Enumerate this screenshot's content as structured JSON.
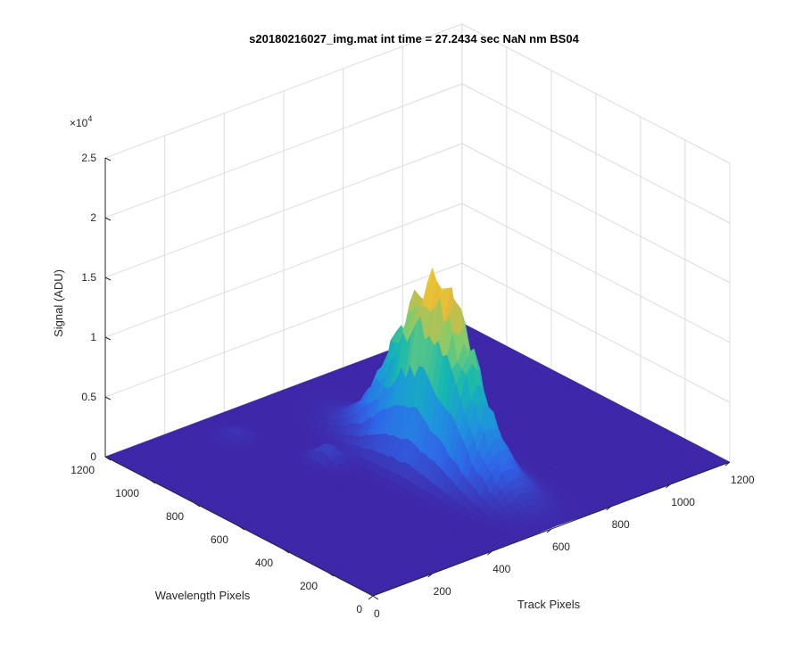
{
  "chart_data": {
    "type": "surface",
    "title": "s20180216027_img.mat int time = 27.2434 sec  NaN nm BS04",
    "xlabel": "Track Pixels",
    "ylabel": "Wavelength Pixels",
    "zlabel": "Signal (ADU)",
    "z_exponent_label": "×10",
    "z_exponent_power": "4",
    "xlim": [
      0,
      1200
    ],
    "ylim": [
      0,
      1200
    ],
    "zlim": [
      0,
      25000
    ],
    "x_ticks": [
      "0",
      "200",
      "400",
      "600",
      "800",
      "1000",
      "1200"
    ],
    "y_ticks": [
      "0",
      "200",
      "400",
      "600",
      "800",
      "1000",
      "1200"
    ],
    "z_ticks": [
      "0",
      "0.5",
      "1",
      "1.5",
      "2",
      "2.5"
    ],
    "grid": true,
    "colormap": "parula",
    "colormap_colors": [
      "#3e26a8",
      "#2f64e8",
      "#1e94dd",
      "#14b7b1",
      "#7fcc6e",
      "#e5b83a",
      "#f9fb15"
    ],
    "baseline_signal": 0,
    "peak": {
      "track_pixel": 620,
      "wavelength_pixel": 540,
      "signal": 16500
    },
    "secondary_features": [
      {
        "track_pixel": 330,
        "wavelength_pixel": 1050,
        "signal": 600
      },
      {
        "track_pixel": 420,
        "wavelength_pixel": 760,
        "signal": 1400
      }
    ]
  }
}
